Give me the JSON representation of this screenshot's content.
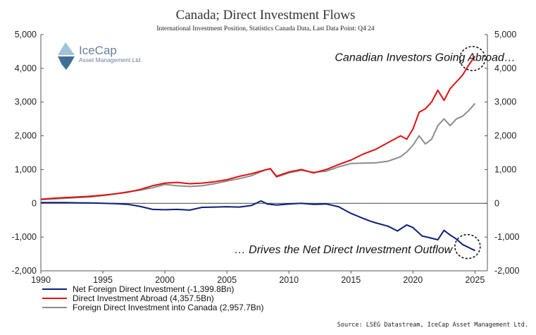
{
  "chart_data": {
    "type": "line",
    "title": "Canada; Direct Investment Flows",
    "subtitle": "International Investment Position, Statistics Canada Data, Last Data Point: Q4 24",
    "x_ticks": [
      1990,
      1995,
      2000,
      2005,
      2010,
      2015,
      2020,
      2025
    ],
    "y_ticks": [
      "5,000",
      "4,000",
      "3,000",
      "2,000",
      "1,000",
      "0",
      "-1,000",
      "-2,000"
    ],
    "y_tick_values": [
      5000,
      4000,
      3000,
      2000,
      1000,
      0,
      -1000,
      -2000
    ],
    "xlim": [
      1990,
      2026
    ],
    "ylim": [
      -2000,
      5000
    ],
    "grid": false,
    "legend_position": "bottom-left",
    "series": [
      {
        "name": "Net Foreign Direct Investment (-1,399.8Bn)",
        "color": "#0a1f7a",
        "x": [
          1990,
          1991,
          1992,
          1993,
          1994,
          1995,
          1996,
          1997,
          1998,
          1999,
          2000,
          2001,
          2002,
          2003,
          2004,
          2005,
          2006,
          2007,
          2007.75,
          2008.25,
          2009,
          2010,
          2011,
          2012,
          2013,
          2014,
          2015,
          2016,
          2016.5,
          2017,
          2018,
          2018.75,
          2019.5,
          2020,
          2020.75,
          2021.25,
          2022,
          2022.5,
          2023,
          2023.5,
          2024,
          2024.5,
          2025
        ],
        "values": [
          20,
          20,
          20,
          15,
          10,
          0,
          -10,
          -30,
          -90,
          -180,
          -190,
          -180,
          -200,
          -120,
          -110,
          -100,
          -110,
          -60,
          70,
          -20,
          -50,
          -20,
          0,
          -30,
          -20,
          -100,
          -300,
          -450,
          -520,
          -580,
          -680,
          -820,
          -640,
          -720,
          -970,
          -1010,
          -1080,
          -800,
          -940,
          -1060,
          -1220,
          -1310,
          -1399.8
        ]
      },
      {
        "name": "Direct Investment Abroad (4,357.5Bn)",
        "color": "#e01010",
        "x": [
          1990,
          1991,
          1992,
          1993,
          1994,
          1995,
          1996,
          1997,
          1998,
          1999,
          2000,
          2001,
          2002,
          2003,
          2004,
          2005,
          2006,
          2007,
          2008,
          2008.5,
          2009,
          2010,
          2011,
          2012,
          2013,
          2014,
          2015,
          2016,
          2017,
          2018,
          2019,
          2019.5,
          2020,
          2020.5,
          2021,
          2021.5,
          2022,
          2022.5,
          2023,
          2023.5,
          2024,
          2024.5,
          2025
        ],
        "values": [
          120,
          150,
          170,
          190,
          210,
          240,
          280,
          330,
          410,
          520,
          600,
          620,
          580,
          600,
          640,
          700,
          800,
          880,
          980,
          1030,
          800,
          930,
          1000,
          900,
          1000,
          1150,
          1280,
          1460,
          1600,
          1800,
          2000,
          1900,
          2200,
          2700,
          2800,
          3000,
          3350,
          3050,
          3400,
          3600,
          3800,
          4100,
          4357.5
        ]
      },
      {
        "name": "Foreign Direct Investment into Canada (2,957.7Bn)",
        "color": "#8c8c8c",
        "x": [
          1990,
          1991,
          1992,
          1993,
          1994,
          1995,
          1996,
          1997,
          1998,
          1999,
          2000,
          2001,
          2002,
          2003,
          2004,
          2005,
          2006,
          2007,
          2008,
          2008.5,
          2009,
          2010,
          2011,
          2012,
          2013,
          2014,
          2015,
          2016,
          2017,
          2018,
          2019,
          2019.5,
          2020,
          2020.5,
          2021,
          2021.5,
          2022,
          2022.5,
          2023,
          2023.5,
          2024,
          2024.5,
          2025
        ],
        "values": [
          110,
          130,
          150,
          170,
          190,
          230,
          280,
          340,
          390,
          460,
          560,
          520,
          500,
          520,
          580,
          660,
          730,
          820,
          980,
          1020,
          780,
          900,
          980,
          920,
          950,
          1080,
          1180,
          1190,
          1200,
          1250,
          1380,
          1520,
          1720,
          2000,
          1760,
          1900,
          2300,
          2500,
          2300,
          2500,
          2580,
          2750,
          2957.7
        ]
      }
    ],
    "annotations": [
      {
        "text": "Canadian Investors Going Abroad…",
        "x": 2013.7,
        "y": 4220
      },
      {
        "text": "… Drives the Net Direct Investment Outflow",
        "x": 2005.6,
        "y": -1480
      }
    ],
    "highlight_circles": [
      {
        "x": 2024.8,
        "y": 4290
      },
      {
        "x": 2024.4,
        "y": -1280
      }
    ],
    "source": "Source: LSEG Datastream, IceCap Asset Management Ltd.",
    "logo": {
      "name": "IceCap",
      "sub": "Asset Management Ltd."
    }
  }
}
